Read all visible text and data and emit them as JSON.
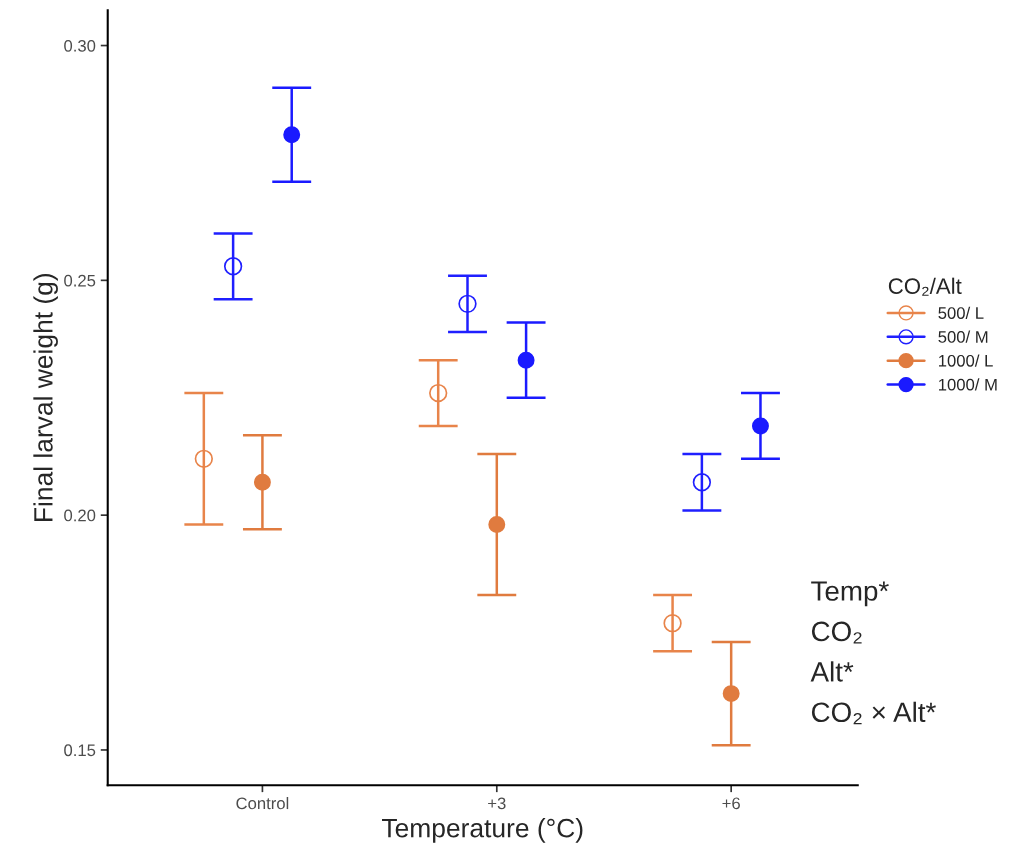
{
  "chart_data": {
    "type": "scatter",
    "xlabel": "Temperature (°C)",
    "ylabel": "Final larval weight (g)",
    "legend_title": "CO₂/Alt",
    "categories": [
      "Control",
      "+3",
      "+6"
    ],
    "series": [
      {
        "name": "500/ L",
        "color": "#e8844a",
        "values": [
          0.212,
          0.226,
          0.177
        ],
        "errors": [
          0.014,
          0.007,
          0.006
        ]
      },
      {
        "name": "500/ M",
        "color": "#1f1fff",
        "values": [
          0.253,
          0.245,
          0.207
        ],
        "errors": [
          0.007,
          0.006,
          0.006
        ]
      },
      {
        "name": "1000/ L",
        "color": "#e07b3f",
        "values": [
          0.207,
          0.198,
          0.162
        ],
        "errors": [
          0.01,
          0.015,
          0.011
        ]
      },
      {
        "name": "1000/ M",
        "color": "#1a1aff",
        "values": [
          0.281,
          0.233,
          0.219
        ],
        "errors": [
          0.01,
          0.008,
          0.007
        ]
      }
    ],
    "ylim": [
      0.1425,
      0.3075
    ],
    "yticks": [
      {
        "value": 0.15,
        "label": "0.15"
      },
      {
        "value": 0.2,
        "label": "0.20"
      },
      {
        "value": 0.25,
        "label": "0.25"
      },
      {
        "value": 0.3,
        "label": "0.30"
      }
    ],
    "marker": "circle",
    "grid": false,
    "legend": "right",
    "annotations": [
      "Temp*",
      "CO₂",
      "Alt*",
      "CO₂ × Alt*"
    ]
  }
}
